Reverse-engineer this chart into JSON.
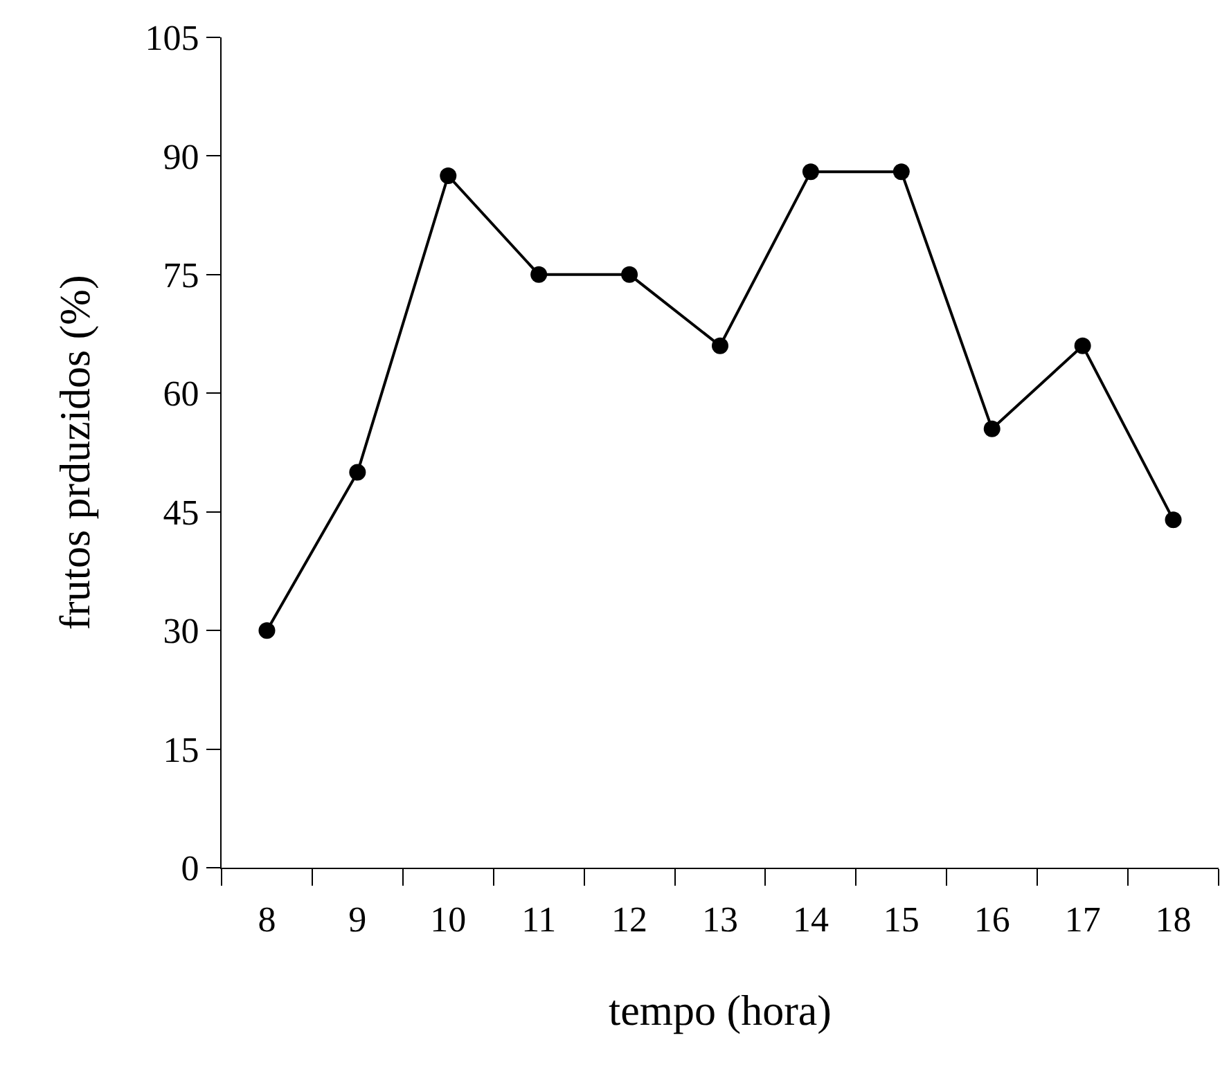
{
  "chart_data": {
    "type": "line",
    "xlabel": "tempo (hora)",
    "ylabel": "frutos prduzidos (%)",
    "categories": [
      "8",
      "9",
      "10",
      "11",
      "12",
      "13",
      "14",
      "15",
      "16",
      "17",
      "18"
    ],
    "series": [
      {
        "color": "#000000",
        "values": [
          30,
          50,
          87.5,
          75,
          75,
          66,
          88,
          88,
          55.5,
          66,
          44
        ]
      }
    ],
    "ylim": [
      0,
      105
    ],
    "yticks": [
      0,
      15,
      30,
      45,
      60,
      75,
      90,
      105
    ],
    "marker": "circle",
    "line_style": "solid"
  }
}
